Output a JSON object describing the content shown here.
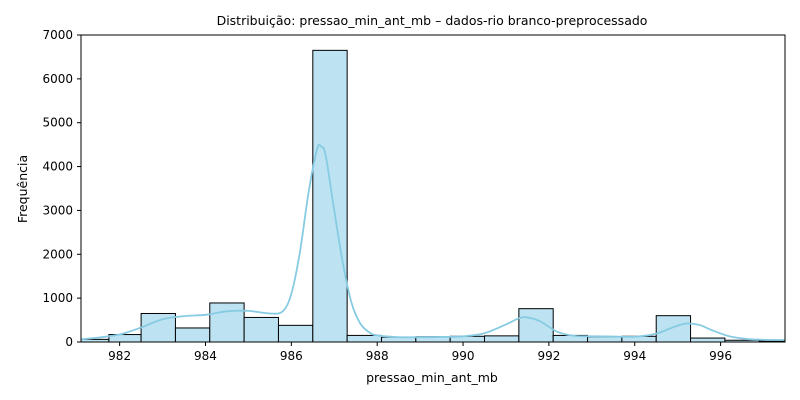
{
  "chart_data": {
    "type": "bar",
    "title": "Distribuição: pressao_min_ant_mb – dados-rio branco-preprocessado",
    "xlabel": "pressao_min_ant_mb",
    "ylabel": "Frequência",
    "xlim": [
      981.1,
      997.5
    ],
    "ylim": [
      0,
      7000
    ],
    "xticks": [
      982,
      984,
      986,
      988,
      990,
      992,
      994,
      996
    ],
    "yticks": [
      0,
      1000,
      2000,
      3000,
      4000,
      5000,
      6000,
      7000
    ],
    "bins": [
      {
        "x0": 981.0,
        "x1": 981.75,
        "count": 60
      },
      {
        "x0": 981.75,
        "x1": 982.5,
        "count": 170
      },
      {
        "x0": 982.5,
        "x1": 983.3,
        "count": 650
      },
      {
        "x0": 983.3,
        "x1": 984.1,
        "count": 320
      },
      {
        "x0": 984.1,
        "x1": 984.9,
        "count": 890
      },
      {
        "x0": 984.9,
        "x1": 985.7,
        "count": 560
      },
      {
        "x0": 985.7,
        "x1": 986.5,
        "count": 380
      },
      {
        "x0": 986.5,
        "x1": 987.3,
        "count": 6650
      },
      {
        "x0": 987.3,
        "x1": 988.1,
        "count": 150
      },
      {
        "x0": 988.1,
        "x1": 988.9,
        "count": 110
      },
      {
        "x0": 988.9,
        "x1": 989.7,
        "count": 120
      },
      {
        "x0": 989.7,
        "x1": 990.5,
        "count": 130
      },
      {
        "x0": 990.5,
        "x1": 991.3,
        "count": 140
      },
      {
        "x0": 991.3,
        "x1": 992.1,
        "count": 760
      },
      {
        "x0": 992.1,
        "x1": 992.9,
        "count": 150
      },
      {
        "x0": 992.9,
        "x1": 993.7,
        "count": 120
      },
      {
        "x0": 993.7,
        "x1": 994.5,
        "count": 130
      },
      {
        "x0": 994.5,
        "x1": 995.3,
        "count": 600
      },
      {
        "x0": 995.3,
        "x1": 996.1,
        "count": 90
      },
      {
        "x0": 996.1,
        "x1": 996.9,
        "count": 40
      },
      {
        "x0": 996.9,
        "x1": 997.7,
        "count": 20
      }
    ],
    "kde": {
      "x": [
        981.1,
        981.5,
        982.0,
        982.5,
        983.0,
        983.5,
        984.0,
        984.5,
        985.0,
        985.5,
        985.8,
        986.0,
        986.2,
        986.4,
        986.6,
        986.7,
        986.8,
        987.0,
        987.2,
        987.4,
        987.6,
        987.8,
        988.0,
        988.5,
        989.0,
        989.5,
        990.0,
        990.5,
        991.0,
        991.3,
        991.5,
        991.8,
        992.2,
        992.6,
        993.0,
        993.5,
        994.0,
        994.5,
        994.9,
        995.2,
        995.5,
        995.8,
        996.2,
        996.6,
        997.0,
        997.5
      ],
      "y": [
        60,
        100,
        170,
        330,
        520,
        590,
        620,
        700,
        710,
        650,
        700,
        1100,
        2050,
        3400,
        4400,
        4450,
        4250,
        3000,
        1800,
        900,
        430,
        230,
        150,
        110,
        110,
        115,
        130,
        200,
        400,
        540,
        560,
        470,
        230,
        140,
        130,
        125,
        120,
        190,
        340,
        420,
        390,
        270,
        130,
        70,
        50,
        45
      ]
    },
    "colors": {
      "bar_fill": "#bde3f3",
      "bar_edge": "#000000",
      "kde_line": "#87cbe3"
    },
    "grid": false,
    "legend": "none"
  }
}
